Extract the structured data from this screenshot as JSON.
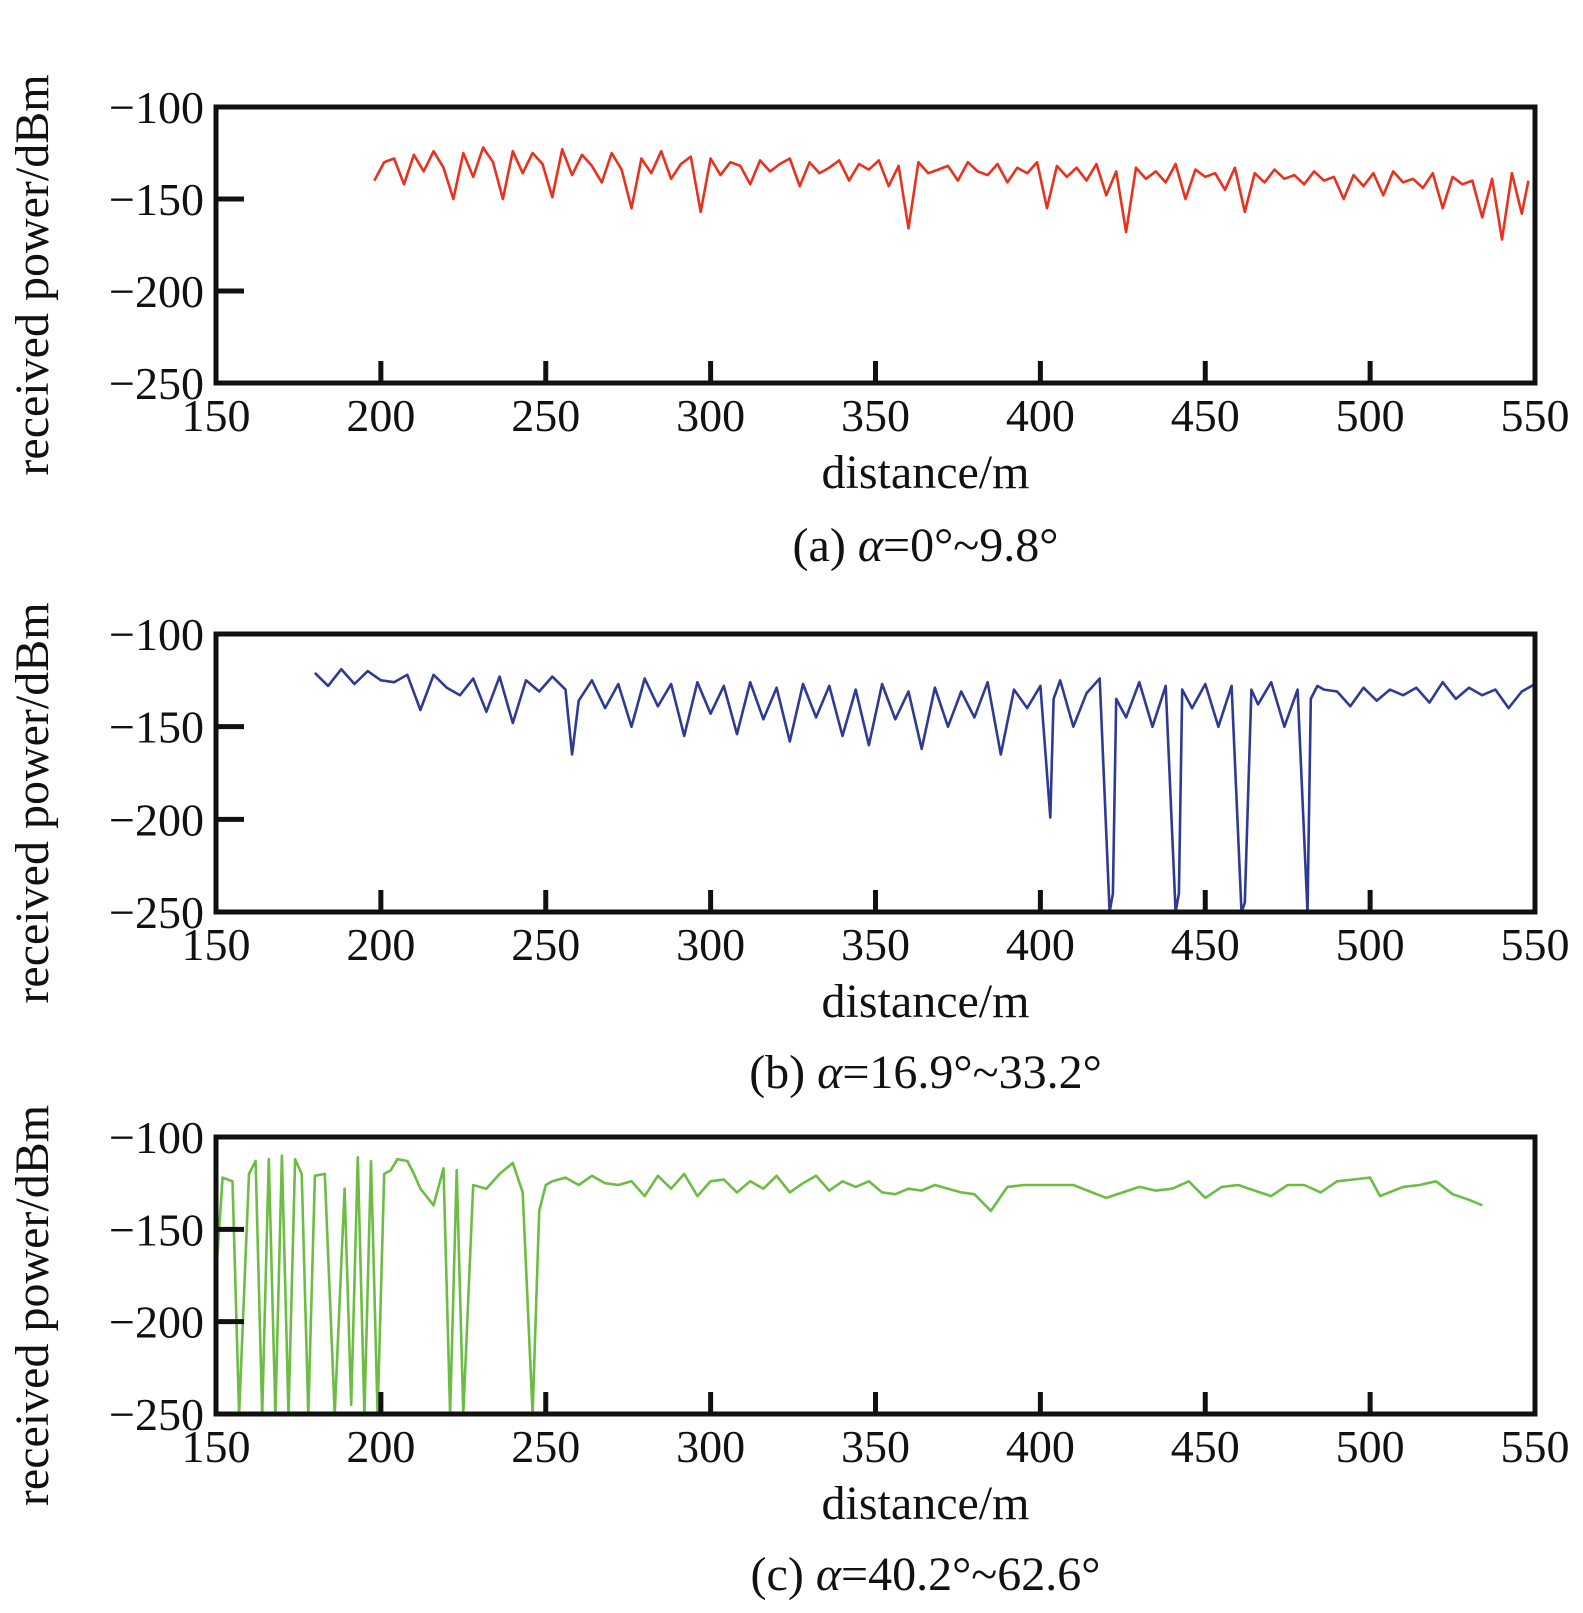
{
  "chart_data": [
    {
      "type": "line",
      "caption_prefix": "(a) ",
      "caption_symbol": "α",
      "caption_rest": "=0°~9.8°",
      "xlabel": "distance/m",
      "ylabel": "received power/dBm",
      "xlim": [
        150,
        550
      ],
      "ylim": [
        -250,
        -100
      ],
      "xticks": [
        150,
        200,
        250,
        300,
        350,
        400,
        450,
        500,
        550
      ],
      "xtick_labels": [
        "150",
        "200",
        "250",
        "300",
        "350",
        "400",
        "450",
        "500",
        "550"
      ],
      "yticks": [
        -100,
        -150,
        -200,
        -250
      ],
      "ytick_labels": [
        "−100",
        "−150",
        "−200",
        "−250"
      ],
      "grid": false,
      "series": [
        {
          "color": "#e8321e",
          "x": [
            198,
            201,
            204,
            207,
            210,
            213,
            216,
            219,
            222,
            225,
            228,
            231,
            234,
            237,
            240,
            243,
            246,
            249,
            252,
            255,
            258,
            261,
            264,
            267,
            270,
            273,
            276,
            279,
            282,
            285,
            288,
            291,
            294,
            297,
            300,
            303,
            306,
            309,
            312,
            315,
            318,
            321,
            324,
            327,
            330,
            333,
            336,
            339,
            342,
            345,
            348,
            351,
            354,
            357,
            360,
            363,
            366,
            369,
            372,
            375,
            378,
            381,
            384,
            387,
            390,
            393,
            396,
            399,
            402,
            405,
            408,
            411,
            414,
            417,
            420,
            423,
            426,
            429,
            432,
            435,
            438,
            441,
            444,
            447,
            450,
            453,
            456,
            459,
            462,
            465,
            468,
            471,
            474,
            477,
            480,
            483,
            486,
            489,
            492,
            495,
            498,
            501,
            504,
            507,
            510,
            513,
            516,
            519,
            522,
            525,
            528,
            531,
            534,
            537,
            540,
            543,
            546,
            548
          ],
          "y": [
            -140,
            -130,
            -128,
            -142,
            -126,
            -135,
            -124,
            -133,
            -150,
            -125,
            -138,
            -122,
            -130,
            -150,
            -124,
            -136,
            -125,
            -131,
            -149,
            -123,
            -137,
            -126,
            -132,
            -141,
            -125,
            -134,
            -155,
            -128,
            -136,
            -124,
            -139,
            -131,
            -127,
            -157,
            -128,
            -137,
            -130,
            -132,
            -142,
            -129,
            -135,
            -131,
            -128,
            -143,
            -130,
            -136,
            -133,
            -129,
            -140,
            -131,
            -134,
            -129,
            -143,
            -132,
            -166,
            -130,
            -136,
            -134,
            -132,
            -140,
            -130,
            -135,
            -137,
            -131,
            -141,
            -133,
            -136,
            -130,
            -155,
            -132,
            -138,
            -133,
            -140,
            -131,
            -148,
            -135,
            -168,
            -133,
            -139,
            -135,
            -141,
            -131,
            -150,
            -134,
            -138,
            -136,
            -145,
            -133,
            -157,
            -136,
            -141,
            -134,
            -139,
            -137,
            -142,
            -135,
            -140,
            -138,
            -150,
            -137,
            -143,
            -136,
            -148,
            -135,
            -141,
            -139,
            -144,
            -136,
            -155,
            -138,
            -142,
            -140,
            -160,
            -139,
            -172,
            -136,
            -158,
            -140
          ]
        }
      ]
    },
    {
      "type": "line",
      "caption_prefix": "(b) ",
      "caption_symbol": "α",
      "caption_rest": "=16.9°~33.2°",
      "xlabel": "distance/m",
      "ylabel": "received power/dBm",
      "xlim": [
        150,
        550
      ],
      "ylim": [
        -250,
        -100
      ],
      "xticks": [
        150,
        200,
        250,
        300,
        350,
        400,
        450,
        500,
        550
      ],
      "xtick_labels": [
        "150",
        "200",
        "250",
        "300",
        "350",
        "400",
        "450",
        "500",
        "550"
      ],
      "yticks": [
        -100,
        -150,
        -200,
        -250
      ],
      "ytick_labels": [
        "−100",
        "−150",
        "−200",
        "−250"
      ],
      "grid": false,
      "series": [
        {
          "color": "#2e3a94",
          "x": [
            180,
            184,
            188,
            192,
            196,
            200,
            204,
            208,
            212,
            216,
            220,
            224,
            228,
            232,
            236,
            240,
            244,
            248,
            252,
            256,
            258,
            260,
            264,
            268,
            272,
            276,
            280,
            284,
            288,
            292,
            296,
            300,
            304,
            308,
            312,
            316,
            320,
            324,
            328,
            332,
            336,
            340,
            344,
            348,
            352,
            356,
            360,
            364,
            368,
            372,
            376,
            380,
            384,
            388,
            392,
            396,
            400,
            403,
            404,
            406,
            410,
            414,
            418,
            421,
            422,
            423,
            426,
            430,
            434,
            438,
            441,
            442,
            443,
            446,
            450,
            454,
            458,
            461,
            462,
            464,
            466,
            470,
            474,
            478,
            481,
            482,
            484,
            486,
            490,
            494,
            498,
            502,
            506,
            510,
            514,
            518,
            522,
            526,
            530,
            534,
            538,
            542,
            546,
            550
          ],
          "y": [
            -121,
            -128,
            -119,
            -127,
            -120,
            -125,
            -126,
            -122,
            -141,
            -122,
            -129,
            -133,
            -124,
            -142,
            -123,
            -148,
            -125,
            -131,
            -123,
            -130,
            -165,
            -136,
            -125,
            -140,
            -127,
            -150,
            -124,
            -139,
            -127,
            -155,
            -126,
            -143,
            -128,
            -154,
            -126,
            -146,
            -129,
            -158,
            -127,
            -145,
            -128,
            -155,
            -130,
            -160,
            -127,
            -146,
            -131,
            -162,
            -129,
            -150,
            -131,
            -145,
            -126,
            -165,
            -130,
            -140,
            -128,
            -199,
            -135,
            -125,
            -150,
            -132,
            -124,
            -250,
            -240,
            -135,
            -145,
            -126,
            -150,
            -128,
            -250,
            -240,
            -130,
            -140,
            -127,
            -150,
            -128,
            -250,
            -245,
            -130,
            -138,
            -126,
            -150,
            -130,
            -250,
            -135,
            -128,
            -130,
            -131,
            -139,
            -129,
            -136,
            -130,
            -133,
            -129,
            -137,
            -126,
            -135,
            -129,
            -133,
            -130,
            -140,
            -131,
            -127
          ]
        }
      ]
    },
    {
      "type": "line",
      "caption_prefix": "(c) ",
      "caption_symbol": "α",
      "caption_rest": "=40.2°~62.6°",
      "xlabel": "distance/m",
      "ylabel": "received power/dBm",
      "xlim": [
        150,
        550
      ],
      "ylim": [
        -250,
        -100
      ],
      "xticks": [
        150,
        200,
        250,
        300,
        350,
        400,
        450,
        500,
        550
      ],
      "xtick_labels": [
        "150",
        "200",
        "250",
        "300",
        "350",
        "400",
        "450",
        "500",
        "550"
      ],
      "yticks": [
        -100,
        -150,
        -200,
        -250
      ],
      "ytick_labels": [
        "−100",
        "−150",
        "−200",
        "−250"
      ],
      "grid": false,
      "series": [
        {
          "color": "#6dbd45",
          "x": [
            150,
            152,
            155,
            157,
            160,
            162,
            164,
            166,
            168,
            170,
            172,
            174,
            176,
            178,
            180,
            183,
            186,
            189,
            191,
            193,
            195,
            197,
            199,
            201,
            203,
            205,
            208,
            210,
            212,
            216,
            219,
            221,
            223,
            225,
            228,
            232,
            236,
            240,
            243,
            246,
            248,
            250,
            252,
            256,
            260,
            264,
            268,
            272,
            276,
            280,
            284,
            288,
            292,
            296,
            300,
            304,
            308,
            312,
            316,
            320,
            324,
            328,
            332,
            336,
            340,
            344,
            348,
            352,
            356,
            360,
            364,
            368,
            372,
            376,
            380,
            385,
            390,
            395,
            400,
            410,
            420,
            430,
            435,
            440,
            445,
            450,
            455,
            460,
            465,
            470,
            475,
            480,
            485,
            490,
            495,
            500,
            503,
            510,
            515,
            520,
            525,
            530,
            534
          ],
          "y": [
            -175,
            -122,
            -124,
            -250,
            -120,
            -113,
            -250,
            -112,
            -250,
            -110,
            -250,
            -112,
            -120,
            -250,
            -121,
            -120,
            -250,
            -128,
            -245,
            -111,
            -250,
            -113,
            -250,
            -120,
            -118,
            -112,
            -113,
            -120,
            -128,
            -137,
            -117,
            -250,
            -118,
            -250,
            -126,
            -128,
            -120,
            -114,
            -130,
            -250,
            -140,
            -126,
            -124,
            -122,
            -126,
            -121,
            -125,
            -126,
            -124,
            -132,
            -121,
            -128,
            -120,
            -132,
            -124,
            -123,
            -130,
            -124,
            -128,
            -121,
            -130,
            -125,
            -121,
            -129,
            -124,
            -127,
            -124,
            -130,
            -131,
            -128,
            -129,
            -126,
            -128,
            -130,
            -131,
            -140,
            -127,
            -126,
            -126,
            -126,
            -133,
            -127,
            -129,
            -128,
            -124,
            -133,
            -127,
            -126,
            -129,
            -132,
            -126,
            -126,
            -130,
            -124,
            -123,
            -122,
            -132,
            -127,
            -126,
            -124,
            -131,
            -134,
            -137
          ]
        }
      ]
    }
  ]
}
